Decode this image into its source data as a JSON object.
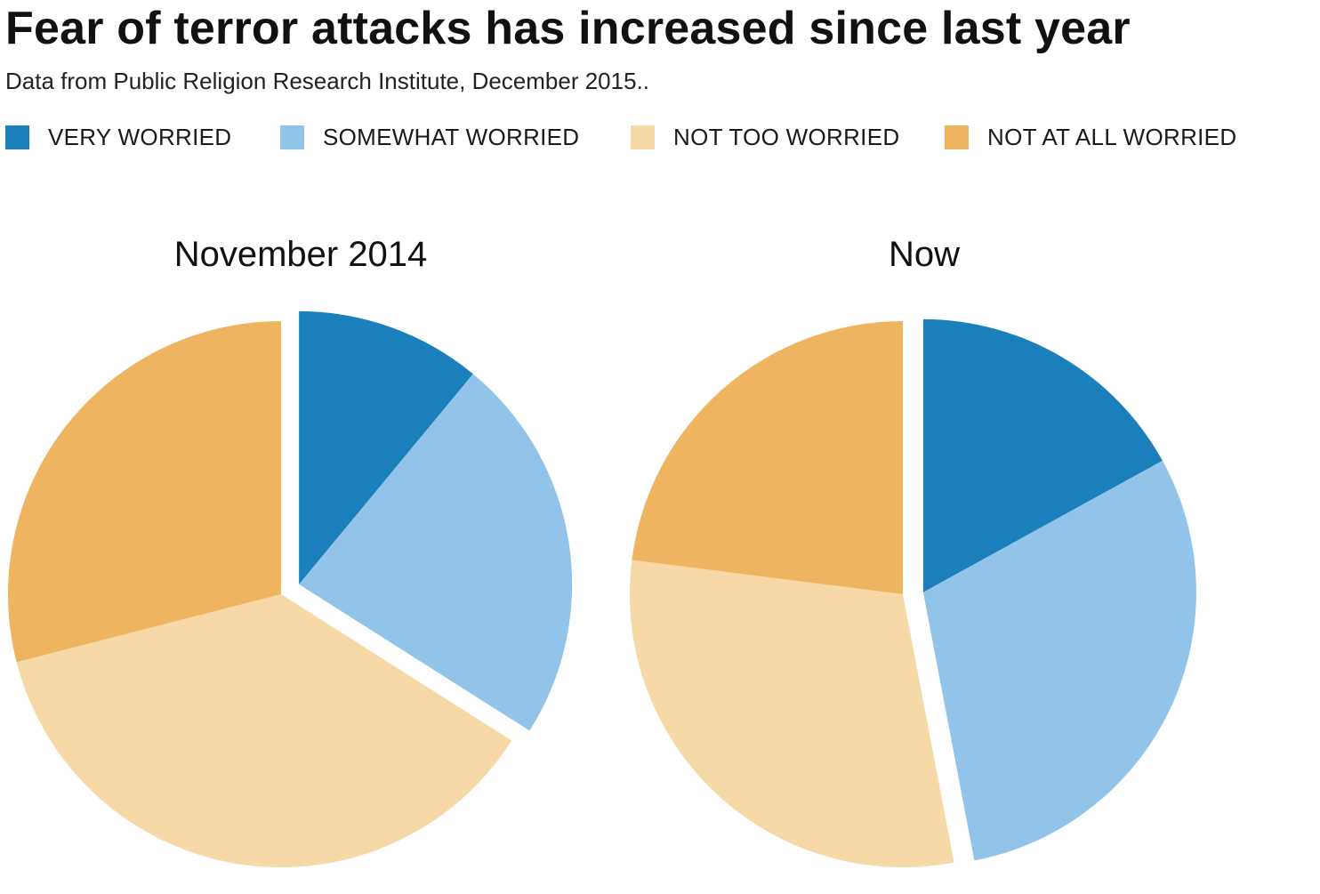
{
  "header": {
    "title": "Fear of terror attacks has increased since last year",
    "subtitle": "Data from Public Religion Research Institute, December 2015.."
  },
  "legend": {
    "placement": "top",
    "items": [
      {
        "label": "VERY WORRIED",
        "color": "#1a7fba"
      },
      {
        "label": "SOMEWHAT WORRIED",
        "color": "#91c4e8"
      },
      {
        "label": "NOT TOO WORRIED",
        "color": "#f6d9a6"
      },
      {
        "label": "NOT AT ALL WORRIED",
        "color": "#efb460"
      }
    ]
  },
  "chart_data": [
    {
      "type": "pie",
      "title": "November 2014",
      "categories": [
        "VERY WORRIED",
        "SOMEWHAT WORRIED",
        "NOT TOO WORRIED",
        "NOT AT ALL WORRIED"
      ],
      "values": [
        11,
        23,
        37,
        29
      ],
      "exploded": [
        "VERY WORRIED",
        "SOMEWHAT WORRIED"
      ]
    },
    {
      "type": "pie",
      "title": "Now",
      "categories": [
        "VERY WORRIED",
        "SOMEWHAT WORRIED",
        "NOT TOO WORRIED",
        "NOT AT ALL WORRIED"
      ],
      "values": [
        17,
        30,
        30,
        23
      ],
      "exploded": [
        "VERY WORRIED",
        "SOMEWHAT WORRIED"
      ]
    }
  ]
}
